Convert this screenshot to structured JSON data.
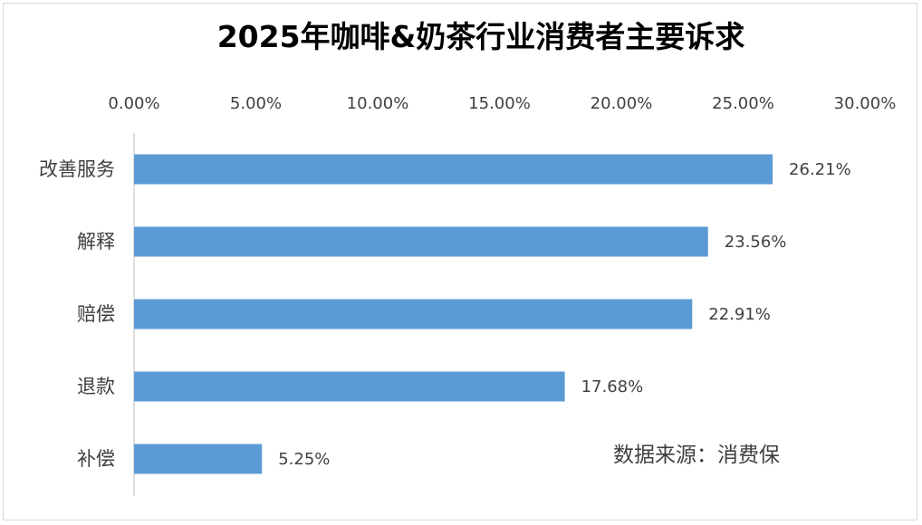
{
  "chart_data": {
    "type": "bar",
    "orientation": "horizontal",
    "title": "2025年咖啡&奶茶行业消费者主要诉求",
    "categories": [
      "改善服务",
      "解释",
      "赔偿",
      "退款",
      "补偿"
    ],
    "values": [
      26.21,
      23.56,
      22.91,
      17.68,
      5.25
    ],
    "value_labels": [
      "26.21%",
      "23.56%",
      "22.91%",
      "17.68%",
      "5.25%"
    ],
    "x_ticks": [
      0,
      5,
      10,
      15,
      20,
      25,
      30
    ],
    "x_tick_labels": [
      "0.00%",
      "5.00%",
      "10.00%",
      "15.00%",
      "20.00%",
      "25.00%",
      "30.00%"
    ],
    "xlim": [
      0,
      30
    ],
    "xaxis_position": "top",
    "grid": false,
    "bar_color": "#5b9bd5",
    "annotation": "数据来源：消费保"
  }
}
